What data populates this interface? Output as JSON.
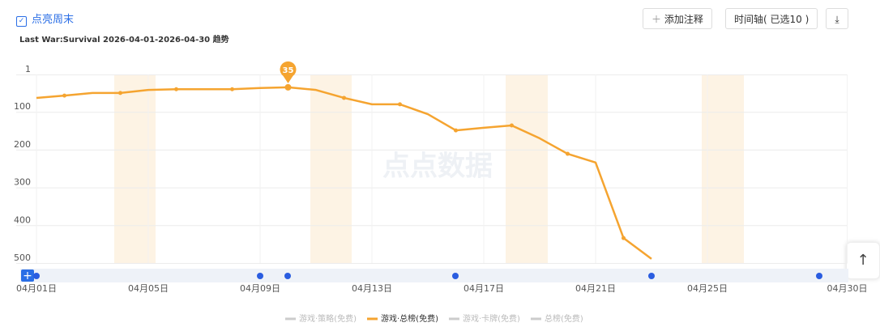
{
  "ui": {
    "toggle": "点亮周末",
    "subtitle": "Last War:Survival 2026-04-01-2026-04-30 趋势",
    "add_note": "添加注释",
    "timeline": "时间轴( 已选10 )",
    "watermark": "点点数据"
  },
  "chart_data": {
    "type": "line",
    "inverted_y": true,
    "grid": true,
    "categories": [
      "04月01日",
      null,
      null,
      null,
      "04月05日",
      null,
      null,
      null,
      "04月09日",
      null,
      null,
      null,
      "04月13日",
      null,
      null,
      null,
      "04月17日",
      null,
      null,
      null,
      "04月21日",
      null,
      null,
      null,
      "04月25日",
      null,
      null,
      null,
      null,
      "04月30日"
    ],
    "ylim": [
      1,
      500
    ],
    "yticks": [
      1,
      100,
      200,
      300,
      400,
      500
    ],
    "series": [
      {
        "name": "游戏·策略(免费)",
        "color": "#cccccc",
        "values": [
          null,
          null,
          null,
          null,
          null,
          null,
          null,
          null,
          null,
          null,
          null,
          null,
          null,
          null,
          null,
          null,
          null,
          null,
          null,
          null,
          null,
          null,
          null,
          null,
          null,
          null,
          null,
          null,
          null,
          null
        ]
      },
      {
        "name": "游戏·总榜(免费)",
        "color": "#f5a430",
        "values": [
          63,
          57,
          50,
          50,
          42,
          40,
          40,
          40,
          37,
          35,
          42,
          63,
          80,
          80,
          106,
          149,
          142,
          136,
          170,
          211,
          234,
          434,
          489,
          null,
          null,
          null,
          null,
          null,
          null,
          null
        ]
      },
      {
        "name": "游戏·卡牌(免费)",
        "color": "#cccccc",
        "values": [
          null,
          null,
          null,
          null,
          null,
          null,
          null,
          null,
          null,
          null,
          null,
          null,
          null,
          null,
          null,
          null,
          null,
          null,
          null,
          null,
          null,
          null,
          null,
          null,
          null,
          null,
          null,
          null,
          null,
          null
        ]
      },
      {
        "name": "总榜(免费)",
        "color": "#cccccc",
        "values": [
          null,
          null,
          null,
          null,
          null,
          null,
          null,
          null,
          null,
          null,
          null,
          null,
          null,
          null,
          null,
          null,
          null,
          null,
          null,
          null,
          null,
          null,
          null,
          null,
          null,
          null,
          null,
          null,
          null,
          null
        ]
      }
    ]
  }
}
